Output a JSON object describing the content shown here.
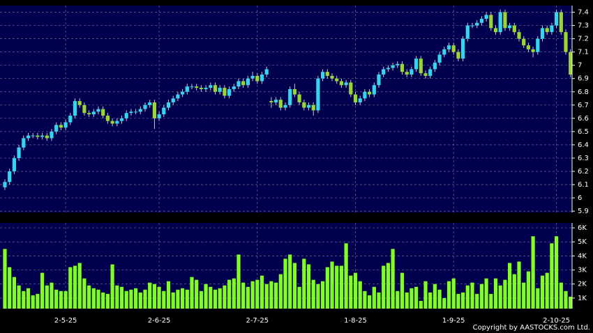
{
  "chart_data": [
    {
      "type": "candlestick",
      "up_color": "#33d6f0",
      "down_color": "#99d630",
      "background": "#00004e",
      "grid": true,
      "credit": "Copyright by AASTOCKS.com Ltd.",
      "ylim": [
        5.89,
        7.45
      ],
      "yticks": [
        5.9,
        6,
        6.1,
        6.2,
        6.3,
        6.4,
        6.5,
        6.6,
        6.7,
        6.8,
        6.9,
        7,
        7.1,
        7.2,
        7.3,
        7.4
      ],
      "ohlc": [
        [
          6.08,
          6.14,
          6.06,
          6.12
        ],
        [
          6.12,
          6.22,
          6.1,
          6.2
        ],
        [
          6.2,
          6.32,
          6.18,
          6.3
        ],
        [
          6.3,
          6.4,
          6.28,
          6.38
        ],
        [
          6.38,
          6.47,
          6.36,
          6.45
        ],
        [
          6.45,
          6.49,
          6.43,
          6.47
        ],
        [
          6.47,
          6.49,
          6.45,
          6.47
        ],
        [
          6.47,
          6.49,
          6.44,
          6.46
        ],
        [
          6.46,
          6.49,
          6.44,
          6.47
        ],
        [
          6.47,
          6.49,
          6.43,
          6.45
        ],
        [
          6.45,
          6.52,
          6.43,
          6.5
        ],
        [
          6.5,
          6.57,
          6.48,
          6.55
        ],
        [
          6.55,
          6.57,
          6.51,
          6.53
        ],
        [
          6.53,
          6.59,
          6.51,
          6.57
        ],
        [
          6.57,
          6.64,
          6.55,
          6.62
        ],
        [
          6.62,
          6.75,
          6.6,
          6.73
        ],
        [
          6.73,
          6.75,
          6.68,
          6.7
        ],
        [
          6.7,
          6.72,
          6.62,
          6.64
        ],
        [
          6.64,
          6.66,
          6.61,
          6.63
        ],
        [
          6.63,
          6.67,
          6.61,
          6.65
        ],
        [
          6.65,
          6.69,
          6.63,
          6.67
        ],
        [
          6.67,
          6.69,
          6.6,
          6.62
        ],
        [
          6.62,
          6.64,
          6.56,
          6.58
        ],
        [
          6.58,
          6.6,
          6.54,
          6.56
        ],
        [
          6.56,
          6.6,
          6.54,
          6.58
        ],
        [
          6.58,
          6.62,
          6.56,
          6.6
        ],
        [
          6.6,
          6.66,
          6.58,
          6.64
        ],
        [
          6.64,
          6.67,
          6.62,
          6.65
        ],
        [
          6.65,
          6.67,
          6.63,
          6.65
        ],
        [
          6.65,
          6.69,
          6.63,
          6.67
        ],
        [
          6.67,
          6.72,
          6.65,
          6.7
        ],
        [
          6.7,
          6.74,
          6.68,
          6.72
        ],
        [
          6.72,
          6.74,
          6.52,
          6.6
        ],
        [
          6.6,
          6.65,
          6.58,
          6.63
        ],
        [
          6.63,
          6.7,
          6.61,
          6.68
        ],
        [
          6.68,
          6.74,
          6.66,
          6.72
        ],
        [
          6.72,
          6.77,
          6.7,
          6.75
        ],
        [
          6.75,
          6.8,
          6.73,
          6.78
        ],
        [
          6.78,
          6.82,
          6.76,
          6.8
        ],
        [
          6.8,
          6.86,
          6.78,
          6.84
        ],
        [
          6.84,
          6.86,
          6.82,
          6.84
        ],
        [
          6.84,
          6.86,
          6.81,
          6.83
        ],
        [
          6.83,
          6.85,
          6.8,
          6.82
        ],
        [
          6.82,
          6.85,
          6.8,
          6.83
        ],
        [
          6.83,
          6.87,
          6.81,
          6.85
        ],
        [
          6.85,
          6.87,
          6.78,
          6.8
        ],
        [
          6.8,
          6.85,
          6.78,
          6.83
        ],
        [
          6.83,
          6.85,
          6.75,
          6.77
        ],
        [
          6.77,
          6.84,
          6.75,
          6.82
        ],
        [
          6.82,
          6.86,
          6.8,
          6.84
        ],
        [
          6.84,
          6.9,
          6.82,
          6.88
        ],
        [
          6.88,
          6.9,
          6.83,
          6.85
        ],
        [
          6.85,
          6.92,
          6.83,
          6.9
        ],
        [
          6.9,
          6.95,
          6.88,
          6.92
        ],
        [
          6.92,
          6.94,
          6.86,
          6.88
        ],
        [
          6.88,
          6.95,
          6.86,
          6.93
        ],
        [
          6.93,
          6.99,
          6.91,
          6.97
        ],
        [
          6.73,
          6.76,
          6.68,
          6.72
        ],
        [
          6.72,
          6.76,
          6.7,
          6.74
        ],
        [
          6.74,
          6.76,
          6.66,
          6.68
        ],
        [
          6.68,
          6.72,
          6.66,
          6.7
        ],
        [
          6.7,
          6.84,
          6.68,
          6.82
        ],
        [
          6.82,
          6.86,
          6.76,
          6.78
        ],
        [
          6.78,
          6.8,
          6.7,
          6.72
        ],
        [
          6.72,
          6.74,
          6.66,
          6.68
        ],
        [
          6.68,
          6.72,
          6.66,
          6.7
        ],
        [
          6.7,
          6.72,
          6.62,
          6.66
        ],
        [
          6.66,
          6.92,
          6.64,
          6.9
        ],
        [
          6.9,
          6.97,
          6.88,
          6.95
        ],
        [
          6.95,
          6.97,
          6.9,
          6.92
        ],
        [
          6.92,
          6.94,
          6.88,
          6.9
        ],
        [
          6.9,
          6.92,
          6.86,
          6.88
        ],
        [
          6.88,
          6.9,
          6.83,
          6.85
        ],
        [
          6.85,
          6.89,
          6.83,
          6.87
        ],
        [
          6.87,
          6.89,
          6.76,
          6.78
        ],
        [
          6.78,
          6.8,
          6.7,
          6.72
        ],
        [
          6.72,
          6.77,
          6.7,
          6.75
        ],
        [
          6.75,
          6.82,
          6.73,
          6.8
        ],
        [
          6.8,
          6.82,
          6.76,
          6.78
        ],
        [
          6.78,
          6.87,
          6.76,
          6.85
        ],
        [
          6.85,
          6.95,
          6.83,
          6.93
        ],
        [
          6.93,
          6.99,
          6.91,
          6.97
        ],
        [
          6.97,
          7.0,
          6.95,
          6.98
        ],
        [
          6.98,
          7.02,
          6.96,
          7.0
        ],
        [
          7.0,
          7.03,
          6.98,
          7.01
        ],
        [
          7.01,
          7.03,
          6.93,
          6.95
        ],
        [
          6.95,
          6.97,
          6.91,
          6.93
        ],
        [
          6.93,
          6.99,
          6.91,
          6.97
        ],
        [
          6.97,
          7.07,
          6.95,
          7.05
        ],
        [
          7.05,
          7.07,
          6.92,
          6.94
        ],
        [
          6.94,
          6.96,
          6.9,
          6.92
        ],
        [
          6.92,
          6.99,
          6.9,
          6.97
        ],
        [
          6.97,
          7.04,
          6.95,
          7.02
        ],
        [
          7.02,
          7.1,
          7.0,
          7.08
        ],
        [
          7.08,
          7.14,
          7.06,
          7.12
        ],
        [
          7.12,
          7.17,
          7.1,
          7.15
        ],
        [
          7.15,
          7.17,
          7.08,
          7.1
        ],
        [
          7.1,
          7.12,
          7.03,
          7.05
        ],
        [
          7.05,
          7.22,
          7.03,
          7.2
        ],
        [
          7.2,
          7.32,
          7.18,
          7.3
        ],
        [
          7.3,
          7.32,
          7.28,
          7.3
        ],
        [
          7.3,
          7.34,
          7.28,
          7.32
        ],
        [
          7.32,
          7.37,
          7.3,
          7.35
        ],
        [
          7.35,
          7.4,
          7.33,
          7.38
        ],
        [
          7.38,
          7.4,
          7.26,
          7.28
        ],
        [
          7.28,
          7.3,
          7.23,
          7.25
        ],
        [
          7.25,
          7.42,
          7.23,
          7.4
        ],
        [
          7.4,
          7.42,
          7.26,
          7.28
        ],
        [
          7.28,
          7.32,
          7.26,
          7.3
        ],
        [
          7.3,
          7.32,
          7.23,
          7.25
        ],
        [
          7.25,
          7.27,
          7.18,
          7.2
        ],
        [
          7.2,
          7.22,
          7.13,
          7.15
        ],
        [
          7.15,
          7.17,
          7.1,
          7.12
        ],
        [
          7.12,
          7.14,
          7.06,
          7.1
        ],
        [
          7.1,
          7.22,
          7.08,
          7.2
        ],
        [
          7.2,
          7.3,
          7.18,
          7.28
        ],
        [
          7.28,
          7.3,
          7.23,
          7.25
        ],
        [
          7.25,
          7.32,
          7.23,
          7.3
        ],
        [
          7.3,
          7.42,
          7.28,
          7.4
        ],
        [
          7.4,
          7.42,
          7.23,
          7.25
        ],
        [
          7.25,
          7.27,
          7.08,
          7.1
        ],
        [
          7.1,
          7.12,
          6.91,
          6.93
        ]
      ]
    },
    {
      "type": "bar",
      "color": "#80ff20",
      "background": "#00004e",
      "grid": true,
      "ylim": [
        250,
        6350
      ],
      "yticks": [
        {
          "value": 1000,
          "label": "1K"
        },
        {
          "value": 2000,
          "label": "2K"
        },
        {
          "value": 3000,
          "label": "3K"
        },
        {
          "value": 4000,
          "label": "4K"
        },
        {
          "value": 5000,
          "label": "5K"
        },
        {
          "value": 6000,
          "label": "6K"
        }
      ],
      "categories": [
        null,
        null,
        null,
        null,
        null,
        null,
        null,
        null,
        null,
        null,
        null,
        null,
        null,
        "2-5-25",
        null,
        null,
        null,
        null,
        null,
        null,
        null,
        null,
        null,
        null,
        null,
        null,
        null,
        null,
        null,
        null,
        null,
        null,
        null,
        "2-6-25",
        null,
        null,
        null,
        null,
        null,
        null,
        null,
        null,
        null,
        null,
        null,
        null,
        null,
        null,
        null,
        null,
        null,
        null,
        null,
        null,
        "2-7-25",
        null,
        null,
        null,
        null,
        null,
        null,
        null,
        null,
        null,
        null,
        null,
        null,
        null,
        null,
        null,
        null,
        null,
        null,
        null,
        null,
        "1-8-25",
        null,
        null,
        null,
        null,
        null,
        null,
        null,
        null,
        null,
        null,
        null,
        null,
        null,
        null,
        null,
        null,
        null,
        null,
        null,
        null,
        "1-9-25",
        null,
        null,
        null,
        null,
        null,
        null,
        null,
        null,
        null,
        null,
        null,
        null,
        null,
        null,
        null,
        null,
        null,
        null,
        null,
        null,
        null,
        "2-10-25",
        null,
        null,
        null
      ],
      "values": [
        4500,
        3200,
        2500,
        1900,
        1500,
        1700,
        1200,
        1300,
        2800,
        1900,
        2100,
        1600,
        1500,
        1500,
        3200,
        3300,
        3500,
        2400,
        1900,
        1700,
        1600,
        1400,
        1300,
        3400,
        1900,
        1800,
        1500,
        1600,
        1700,
        1400,
        1600,
        2100,
        2000,
        1800,
        1500,
        2200,
        1400,
        1600,
        1700,
        1600,
        2500,
        2300,
        1500,
        2000,
        1800,
        1600,
        1700,
        1900,
        2300,
        2400,
        4100,
        2100,
        1800,
        2200,
        2300,
        2600,
        2000,
        2200,
        2100,
        2700,
        3800,
        4100,
        3500,
        1800,
        3800,
        3400,
        2300,
        2000,
        2200,
        3200,
        3600,
        3300,
        3300,
        4900,
        2600,
        2800,
        2200,
        1500,
        1200,
        1800,
        1400,
        3300,
        3500,
        4500,
        1500,
        2800,
        1400,
        1700,
        1800,
        800,
        2200,
        1400,
        2000,
        1600,
        1000,
        2200,
        2400,
        1300,
        1400,
        1900,
        2100,
        1300,
        2000,
        2400,
        1300,
        2400,
        1900,
        2300,
        3500,
        2700,
        3600,
        2100,
        2900,
        5400,
        1700,
        2600,
        2800,
        4900,
        5400,
        2100,
        1500,
        1100
      ]
    }
  ]
}
